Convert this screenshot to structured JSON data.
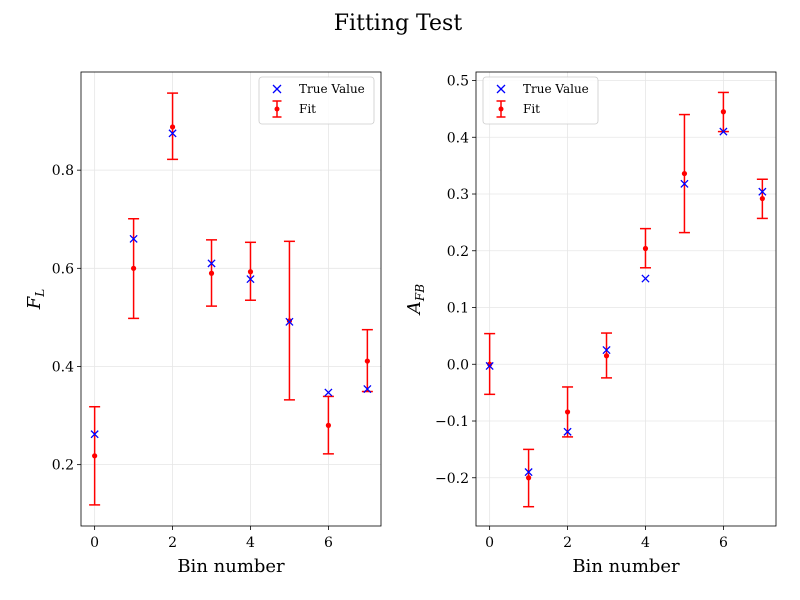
{
  "figure": {
    "title": "Fitting Test"
  },
  "chart_data": [
    {
      "type": "scatter",
      "id": "fl",
      "xlabel": "Bin number",
      "ylabel": "F",
      "ylabel_sub": "L",
      "xlim": [
        -0.35,
        7.35
      ],
      "ylim": [
        0.075,
        1.0
      ],
      "xticks": [
        0,
        2,
        4,
        6
      ],
      "xtick_labels": [
        "0",
        "2",
        "4",
        "6"
      ],
      "yticks": [
        0.2,
        0.4,
        0.6,
        0.8
      ],
      "ytick_labels": [
        "0.2",
        "0.4",
        "0.6",
        "0.8"
      ],
      "grid": true,
      "legend": {
        "location": "top-right",
        "entries": [
          "True Value",
          "Fit"
        ]
      },
      "series": [
        {
          "name": "True Value",
          "marker": "x",
          "color": "#0000ff",
          "x": [
            0,
            1,
            2,
            3,
            4,
            5,
            6,
            7
          ],
          "y": [
            0.262,
            0.66,
            0.875,
            0.61,
            0.578,
            0.491,
            0.347,
            0.354
          ]
        },
        {
          "name": "Fit",
          "marker": "errorbar",
          "color": "#ff0000",
          "x": [
            0,
            1,
            2,
            3,
            4,
            5,
            6,
            7
          ],
          "y": [
            0.218,
            0.6,
            0.888,
            0.59,
            0.593,
            0.493,
            0.28,
            0.411
          ],
          "y_low": [
            0.118,
            0.498,
            0.822,
            0.523,
            0.535,
            0.332,
            0.222,
            0.349
          ],
          "y_high": [
            0.318,
            0.701,
            0.957,
            0.658,
            0.653,
            0.655,
            0.339,
            0.475
          ]
        }
      ]
    },
    {
      "type": "scatter",
      "id": "afb",
      "xlabel": "Bin number",
      "ylabel": "A",
      "ylabel_sub": "FB",
      "xlim": [
        -0.35,
        7.35
      ],
      "ylim": [
        -0.285,
        0.515
      ],
      "xticks": [
        0,
        2,
        4,
        6
      ],
      "xtick_labels": [
        "0",
        "2",
        "4",
        "6"
      ],
      "yticks": [
        -0.2,
        -0.1,
        0.0,
        0.1,
        0.2,
        0.3,
        0.4,
        0.5
      ],
      "ytick_labels": [
        "−0.2",
        "−0.1",
        "0.0",
        "0.1",
        "0.2",
        "0.3",
        "0.4",
        "0.5"
      ],
      "grid": true,
      "legend": {
        "location": "top-left",
        "entries": [
          "True Value",
          "Fit"
        ]
      },
      "series": [
        {
          "name": "True Value",
          "marker": "x",
          "color": "#0000ff",
          "x": [
            0,
            1,
            2,
            3,
            4,
            5,
            6,
            7
          ],
          "y": [
            -0.003,
            -0.19,
            -0.119,
            0.025,
            0.151,
            0.318,
            0.41,
            0.304
          ]
        },
        {
          "name": "Fit",
          "marker": "errorbar",
          "color": "#ff0000",
          "x": [
            0,
            1,
            2,
            3,
            4,
            5,
            6,
            7
          ],
          "y": [
            0.0,
            -0.2,
            -0.084,
            0.015,
            0.204,
            0.336,
            0.445,
            0.292
          ],
          "y_low": [
            -0.053,
            -0.251,
            -0.128,
            -0.024,
            0.17,
            0.232,
            0.41,
            0.257
          ],
          "y_high": [
            0.054,
            -0.15,
            -0.04,
            0.055,
            0.239,
            0.44,
            0.479,
            0.326
          ]
        }
      ]
    }
  ]
}
